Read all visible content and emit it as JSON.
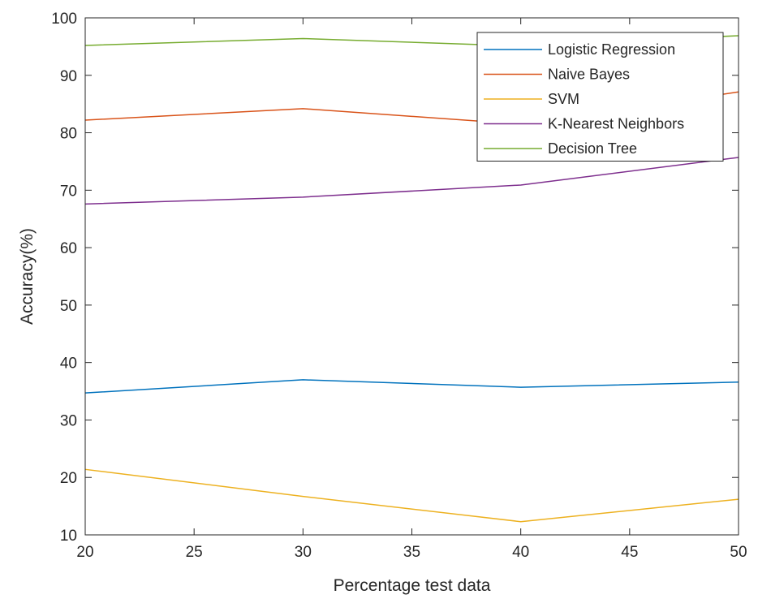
{
  "chart_data": {
    "type": "line",
    "title": "",
    "xlabel": "Percentage test data",
    "ylabel": "Accuracy(%)",
    "xlim": [
      20,
      50
    ],
    "ylim": [
      10,
      100
    ],
    "xticks": [
      20,
      25,
      30,
      35,
      40,
      45,
      50
    ],
    "yticks": [
      10,
      20,
      30,
      40,
      50,
      60,
      70,
      80,
      90,
      100
    ],
    "grid": false,
    "legend_position": "top-right",
    "x": [
      20,
      30,
      40,
      50
    ],
    "series": [
      {
        "name": "Logistic Regression",
        "color": "#0072BD",
        "values": [
          34.7,
          37.0,
          35.7,
          36.6
        ]
      },
      {
        "name": "Naive Bayes",
        "color": "#D95319",
        "values": [
          82.2,
          84.2,
          81.5,
          87.1
        ]
      },
      {
        "name": "SVM",
        "color": "#EDB120",
        "values": [
          21.4,
          16.7,
          12.3,
          16.2
        ]
      },
      {
        "name": "K-Nearest Neighbors",
        "color": "#7E2F8E",
        "values": [
          67.6,
          68.8,
          70.9,
          75.7
        ]
      },
      {
        "name": "Decision Tree",
        "color": "#77AC30",
        "values": [
          95.2,
          96.4,
          95.1,
          96.9
        ]
      }
    ]
  }
}
